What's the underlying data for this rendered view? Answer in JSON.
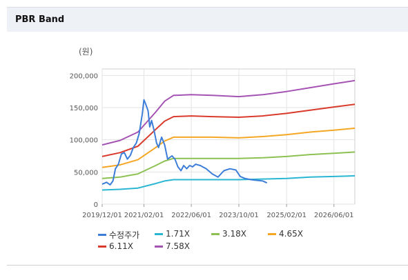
{
  "panel": {
    "title": "PBR Band"
  },
  "chart_data": {
    "type": "line",
    "unit": "(원)",
    "ylim": [
      0,
      210000
    ],
    "yticks": [
      0,
      50000,
      100000,
      150000,
      200000
    ],
    "ytick_labels": [
      "0",
      "50,000",
      "100,000",
      "150,000",
      "200,000"
    ],
    "xticks": [
      "2019-12-01",
      "2021-02-01",
      "2022-06-01",
      "2023-10-01",
      "2025-02-01",
      "2026-06-01"
    ],
    "xtick_labels": [
      "2019/12/01",
      "2021/02/01",
      "2022/06/01",
      "2023/10/01",
      "2025/02/01",
      "2026/06/01"
    ],
    "xlim": [
      "2019-12-01",
      "2027-01-01"
    ],
    "grid": true,
    "legend_position": "bottom",
    "series": [
      {
        "name": "수정주가",
        "color": "#3b7dd8",
        "points": [
          [
            "2019-12-01",
            31000
          ],
          [
            "2020-01-15",
            34000
          ],
          [
            "2020-02-20",
            30000
          ],
          [
            "2020-03-20",
            36000
          ],
          [
            "2020-04-15",
            55000
          ],
          [
            "2020-05-15",
            62000
          ],
          [
            "2020-06-15",
            78000
          ],
          [
            "2020-07-15",
            80000
          ],
          [
            "2020-08-15",
            70000
          ],
          [
            "2020-09-15",
            76000
          ],
          [
            "2020-10-15",
            88000
          ],
          [
            "2020-11-15",
            95000
          ],
          [
            "2020-12-15",
            110000
          ],
          [
            "2021-01-15",
            140000
          ],
          [
            "2021-02-01",
            162000
          ],
          [
            "2021-02-20",
            155000
          ],
          [
            "2021-03-15",
            145000
          ],
          [
            "2021-04-01",
            120000
          ],
          [
            "2021-04-20",
            130000
          ],
          [
            "2021-05-15",
            115000
          ],
          [
            "2021-06-10",
            95000
          ],
          [
            "2021-07-01",
            88000
          ],
          [
            "2021-08-01",
            104000
          ],
          [
            "2021-09-01",
            92000
          ],
          [
            "2021-10-01",
            70000
          ],
          [
            "2021-11-15",
            75000
          ],
          [
            "2021-12-15",
            70000
          ],
          [
            "2022-01-15",
            58000
          ],
          [
            "2022-02-15",
            52000
          ],
          [
            "2022-03-15",
            60000
          ],
          [
            "2022-04-15",
            55000
          ],
          [
            "2022-05-15",
            60000
          ],
          [
            "2022-06-15",
            58000
          ],
          [
            "2022-07-15",
            62000
          ],
          [
            "2022-09-01",
            60000
          ],
          [
            "2022-11-01",
            55000
          ],
          [
            "2023-01-01",
            47000
          ],
          [
            "2023-03-01",
            42000
          ],
          [
            "2023-05-01",
            52000
          ],
          [
            "2023-07-01",
            55000
          ],
          [
            "2023-09-01",
            53000
          ],
          [
            "2023-10-15",
            43000
          ],
          [
            "2023-12-01",
            40000
          ],
          [
            "2024-02-01",
            38000
          ],
          [
            "2024-04-01",
            37000
          ],
          [
            "2024-06-01",
            36000
          ],
          [
            "2024-07-15",
            33000
          ]
        ]
      },
      {
        "name": "1.71X",
        "color": "#29b6d3",
        "points": [
          [
            "2019-12-01",
            22000
          ],
          [
            "2020-06-01",
            23000
          ],
          [
            "2020-12-01",
            25000
          ],
          [
            "2021-06-01",
            32000
          ],
          [
            "2021-09-01",
            36000
          ],
          [
            "2021-12-01",
            38000
          ],
          [
            "2022-06-01",
            38000
          ],
          [
            "2023-01-01",
            38000
          ],
          [
            "2023-10-01",
            38000
          ],
          [
            "2024-06-01",
            39000
          ],
          [
            "2025-02-01",
            40000
          ],
          [
            "2025-10-01",
            42000
          ],
          [
            "2026-06-01",
            43000
          ],
          [
            "2027-01-01",
            44000
          ]
        ]
      },
      {
        "name": "3.18X",
        "color": "#8cc152",
        "points": [
          [
            "2019-12-01",
            40000
          ],
          [
            "2020-06-01",
            42000
          ],
          [
            "2020-12-01",
            47000
          ],
          [
            "2021-06-01",
            60000
          ],
          [
            "2021-09-01",
            67000
          ],
          [
            "2021-12-01",
            71000
          ],
          [
            "2022-06-01",
            71000
          ],
          [
            "2023-01-01",
            71000
          ],
          [
            "2023-10-01",
            71000
          ],
          [
            "2024-06-01",
            72000
          ],
          [
            "2025-02-01",
            74000
          ],
          [
            "2025-10-01",
            77000
          ],
          [
            "2026-06-01",
            79000
          ],
          [
            "2027-01-01",
            81000
          ]
        ]
      },
      {
        "name": "4.65X",
        "color": "#f5a623",
        "points": [
          [
            "2019-12-01",
            57000
          ],
          [
            "2020-06-01",
            61000
          ],
          [
            "2020-12-01",
            69000
          ],
          [
            "2021-06-01",
            88000
          ],
          [
            "2021-09-01",
            98000
          ],
          [
            "2021-12-01",
            104000
          ],
          [
            "2022-06-01",
            104000
          ],
          [
            "2023-01-01",
            104000
          ],
          [
            "2023-10-01",
            103000
          ],
          [
            "2024-06-01",
            105000
          ],
          [
            "2025-02-01",
            108000
          ],
          [
            "2025-10-01",
            112000
          ],
          [
            "2026-06-01",
            115000
          ],
          [
            "2027-01-01",
            118000
          ]
        ]
      },
      {
        "name": "6.11X",
        "color": "#d93a2b",
        "points": [
          [
            "2019-12-01",
            74000
          ],
          [
            "2020-06-01",
            80000
          ],
          [
            "2020-12-01",
            90000
          ],
          [
            "2021-06-01",
            116000
          ],
          [
            "2021-09-01",
            129000
          ],
          [
            "2021-12-01",
            136000
          ],
          [
            "2022-06-01",
            137000
          ],
          [
            "2023-01-01",
            136000
          ],
          [
            "2023-10-01",
            135000
          ],
          [
            "2024-06-01",
            137000
          ],
          [
            "2025-02-01",
            141000
          ],
          [
            "2025-10-01",
            146000
          ],
          [
            "2026-06-01",
            151000
          ],
          [
            "2027-01-01",
            155000
          ]
        ]
      },
      {
        "name": "7.58X",
        "color": "#a453b3",
        "points": [
          [
            "2019-12-01",
            92000
          ],
          [
            "2020-06-01",
            99000
          ],
          [
            "2020-12-01",
            112000
          ],
          [
            "2021-06-01",
            143000
          ],
          [
            "2021-09-01",
            160000
          ],
          [
            "2021-12-01",
            169000
          ],
          [
            "2022-06-01",
            170000
          ],
          [
            "2023-01-01",
            169000
          ],
          [
            "2023-10-01",
            167000
          ],
          [
            "2024-06-01",
            170000
          ],
          [
            "2025-02-01",
            175000
          ],
          [
            "2025-10-01",
            181000
          ],
          [
            "2026-06-01",
            187000
          ],
          [
            "2027-01-01",
            192000
          ]
        ]
      }
    ]
  }
}
